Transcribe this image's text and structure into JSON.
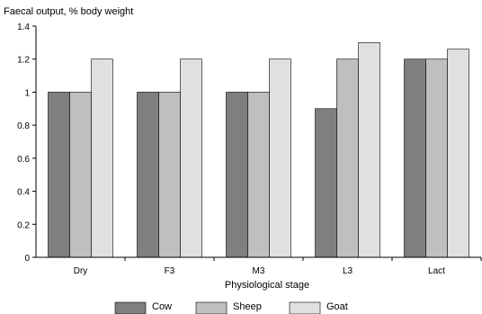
{
  "chart_data": {
    "type": "bar",
    "title": "Faecal output, %  body weight",
    "xlabel": "Physiological stage",
    "ylabel": "",
    "categories": [
      "Dry",
      "F3",
      "M3",
      "L3",
      "Lact"
    ],
    "series": [
      {
        "name": "Cow",
        "color": "#7f7f7f",
        "values": [
          1.0,
          1.0,
          1.0,
          0.9,
          1.2
        ]
      },
      {
        "name": "Sheep",
        "color": "#bfbfbf",
        "values": [
          1.0,
          1.0,
          1.0,
          1.2,
          1.2
        ]
      },
      {
        "name": "Goat",
        "color": "#e0e0e0",
        "values": [
          1.2,
          1.2,
          1.2,
          1.3,
          1.26
        ]
      }
    ],
    "ylim": [
      0,
      1.4
    ],
    "yticks": [
      "0",
      "0.2",
      "0.4",
      "0.6",
      "0.8",
      "1",
      "1.2",
      "1.4"
    ],
    "grid": false,
    "legend_position": "bottom"
  }
}
